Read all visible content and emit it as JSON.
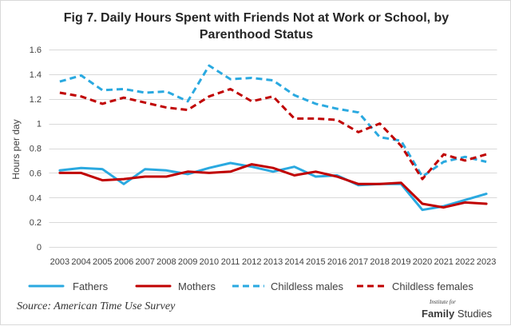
{
  "chart_data": {
    "type": "line",
    "title": "Fig 7. Daily Hours Spent with Friends Not at Work or School, by Parenthood Status",
    "ylabel": "Hours per day",
    "ylim": [
      0,
      1.6
    ],
    "yticks": [
      0,
      0.2,
      0.4,
      0.6,
      0.8,
      1,
      1.2,
      1.4,
      1.6
    ],
    "x": [
      "2003",
      "2004",
      "2005",
      "2006",
      "2007",
      "2008",
      "2009",
      "2010",
      "2011",
      "2012",
      "2013",
      "2014",
      "2015",
      "2016",
      "2017",
      "2018",
      "2019",
      "2020",
      "2021",
      "2022",
      "2023"
    ],
    "grid": true,
    "legend": "bottom",
    "series": [
      {
        "name": "Fathers",
        "color": "#2AA9E0",
        "dashed": false,
        "values": [
          0.62,
          0.64,
          0.63,
          0.51,
          0.63,
          0.62,
          0.59,
          0.64,
          0.68,
          0.65,
          0.61,
          0.65,
          0.57,
          0.58,
          0.5,
          0.51,
          0.51,
          0.3,
          0.33,
          0.38,
          0.43
        ]
      },
      {
        "name": "Mothers",
        "color": "#C00000",
        "dashed": false,
        "values": [
          0.6,
          0.6,
          0.54,
          0.55,
          0.57,
          0.57,
          0.61,
          0.6,
          0.61,
          0.67,
          0.64,
          0.58,
          0.61,
          0.57,
          0.51,
          0.51,
          0.52,
          0.35,
          0.32,
          0.36,
          0.35
        ]
      },
      {
        "name": "Childless males",
        "color": "#2AA9E0",
        "dashed": true,
        "values": [
          1.34,
          1.39,
          1.27,
          1.28,
          1.25,
          1.26,
          1.18,
          1.47,
          1.36,
          1.37,
          1.35,
          1.23,
          1.16,
          1.12,
          1.09,
          0.89,
          0.86,
          0.57,
          0.69,
          0.73,
          0.69
        ]
      },
      {
        "name": "Childless females",
        "color": "#C00000",
        "dashed": true,
        "values": [
          1.25,
          1.22,
          1.16,
          1.21,
          1.17,
          1.13,
          1.11,
          1.22,
          1.28,
          1.18,
          1.22,
          1.04,
          1.04,
          1.03,
          0.93,
          1.0,
          0.82,
          0.55,
          0.75,
          0.7,
          0.75
        ]
      }
    ]
  },
  "source": "Source: American Time Use Survey",
  "logo": {
    "top": "Institute for",
    "family": "Family",
    "studies": "Studies"
  }
}
